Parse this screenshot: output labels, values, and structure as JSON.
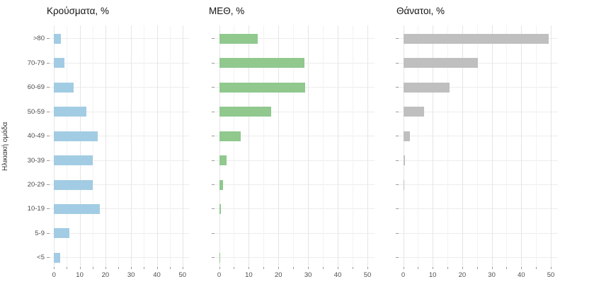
{
  "chart_data": {
    "type": "bar",
    "orientation": "horizontal",
    "ylabel": "Ηλικιακή ομάδα",
    "categories": [
      ">80",
      "70-79",
      "60-69",
      "50-59",
      "40-49",
      "30-39",
      "20-29",
      "10-19",
      "5-9",
      "<5"
    ],
    "xlim": [
      0,
      50
    ],
    "xticks": [
      0,
      10,
      20,
      30,
      40,
      50
    ],
    "minor_xticks": [
      5,
      15,
      25,
      35,
      45
    ],
    "grid": true,
    "legend": "none",
    "panels": [
      {
        "title": "Κρούσματα, %",
        "color": "#a2cce3",
        "values": [
          2.6,
          4.0,
          7.5,
          12.6,
          17.1,
          15.0,
          15.0,
          17.8,
          6.1,
          2.3
        ]
      },
      {
        "title": "ΜΕΘ, %",
        "color": "#90c88e",
        "values": [
          13.0,
          28.7,
          29.1,
          17.6,
          7.3,
          2.4,
          1.2,
          0.5,
          0.0,
          0.1
        ]
      },
      {
        "title": "Θάνατοι, %",
        "color": "#bfbfbf",
        "values": [
          49.2,
          25.2,
          15.8,
          7.0,
          2.3,
          0.6,
          0.1,
          0.0,
          0.0,
          0.0
        ]
      }
    ]
  }
}
